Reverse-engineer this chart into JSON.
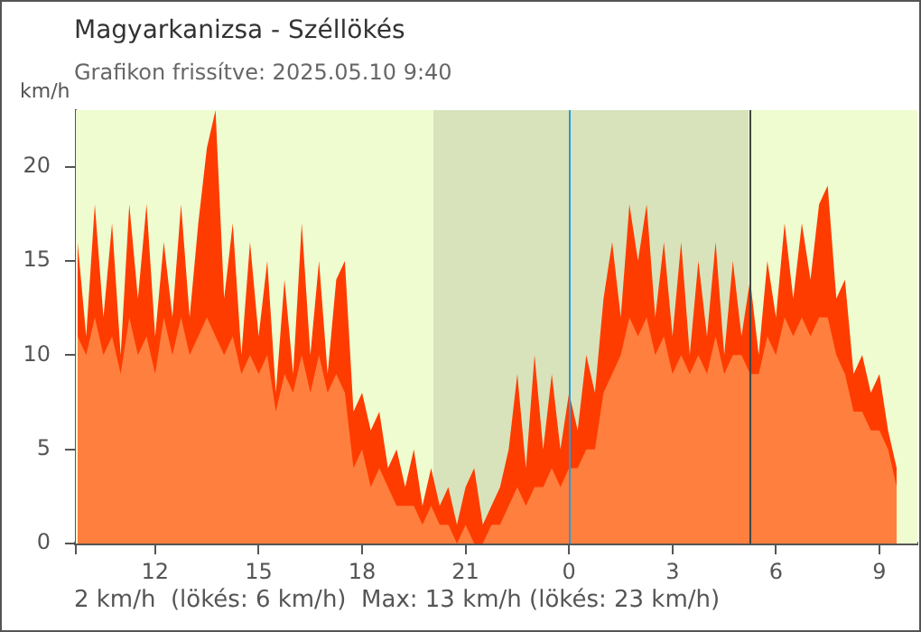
{
  "chart_data": {
    "type": "area",
    "title": "Magyarkanizsa - Széllökés",
    "subtitle": "Grafikon frissítve: 2025.05.10 9:40",
    "ylabel": "km/h",
    "annotations": [
      "2 km/h  (lökés: 6 km/h)  Max: 13 km/h (lökés: 23 km/h)"
    ],
    "x": [
      "2025-05-09T09:45",
      "2025-05-09T10:00",
      "2025-05-09T10:15",
      "2025-05-09T10:30",
      "2025-05-09T10:45",
      "2025-05-09T11:00",
      "2025-05-09T11:15",
      "2025-05-09T11:30",
      "2025-05-09T11:45",
      "2025-05-09T12:00",
      "2025-05-09T12:15",
      "2025-05-09T12:30",
      "2025-05-09T12:45",
      "2025-05-09T13:00",
      "2025-05-09T13:15",
      "2025-05-09T13:30",
      "2025-05-09T13:45",
      "2025-05-09T14:00",
      "2025-05-09T14:15",
      "2025-05-09T14:30",
      "2025-05-09T14:45",
      "2025-05-09T15:00",
      "2025-05-09T15:15",
      "2025-05-09T15:30",
      "2025-05-09T15:45",
      "2025-05-09T16:00",
      "2025-05-09T16:15",
      "2025-05-09T16:30",
      "2025-05-09T16:45",
      "2025-05-09T17:00",
      "2025-05-09T17:15",
      "2025-05-09T17:30",
      "2025-05-09T17:45",
      "2025-05-09T18:00",
      "2025-05-09T18:15",
      "2025-05-09T18:30",
      "2025-05-09T18:45",
      "2025-05-09T19:00",
      "2025-05-09T19:15",
      "2025-05-09T19:30",
      "2025-05-09T19:45",
      "2025-05-09T20:00",
      "2025-05-09T20:15",
      "2025-05-09T20:30",
      "2025-05-09T20:45",
      "2025-05-09T21:00",
      "2025-05-09T21:15",
      "2025-05-09T21:30",
      "2025-05-09T21:45",
      "2025-05-09T22:00",
      "2025-05-09T22:15",
      "2025-05-09T22:30",
      "2025-05-09T22:45",
      "2025-05-09T23:00",
      "2025-05-09T23:15",
      "2025-05-09T23:30",
      "2025-05-09T23:45",
      "2025-05-10T00:00",
      "2025-05-10T00:15",
      "2025-05-10T00:30",
      "2025-05-10T00:45",
      "2025-05-10T01:00",
      "2025-05-10T01:15",
      "2025-05-10T01:30",
      "2025-05-10T01:45",
      "2025-05-10T02:00",
      "2025-05-10T02:15",
      "2025-05-10T02:30",
      "2025-05-10T02:45",
      "2025-05-10T03:00",
      "2025-05-10T03:15",
      "2025-05-10T03:30",
      "2025-05-10T03:45",
      "2025-05-10T04:00",
      "2025-05-10T04:15",
      "2025-05-10T04:30",
      "2025-05-10T04:45",
      "2025-05-10T05:00",
      "2025-05-10T05:15",
      "2025-05-10T05:30",
      "2025-05-10T05:45",
      "2025-05-10T06:00",
      "2025-05-10T06:15",
      "2025-05-10T06:30",
      "2025-05-10T06:45",
      "2025-05-10T07:00",
      "2025-05-10T07:15",
      "2025-05-10T07:30",
      "2025-05-10T07:45",
      "2025-05-10T08:00",
      "2025-05-10T08:15",
      "2025-05-10T08:30",
      "2025-05-10T08:45",
      "2025-05-10T09:00",
      "2025-05-10T09:15",
      "2025-05-10T09:30"
    ],
    "series": [
      {
        "color": "#ff3c00",
        "values": [
          16,
          11,
          18,
          12,
          17,
          10,
          18,
          13,
          18,
          11,
          16,
          12,
          18,
          12,
          17,
          21,
          23,
          13,
          17,
          10,
          16,
          11,
          15,
          8,
          14,
          9,
          17,
          10,
          15,
          9,
          14,
          15,
          7,
          8,
          6,
          7,
          4,
          5,
          3,
          5,
          2,
          4,
          2,
          3,
          1,
          3,
          4,
          1,
          2,
          3,
          5,
          9,
          4,
          10,
          5,
          9,
          5,
          8,
          6,
          10,
          8,
          13,
          16,
          12,
          18,
          15,
          18,
          12,
          16,
          11,
          16,
          10,
          15,
          11,
          16,
          10,
          15,
          11,
          14,
          10,
          15,
          12,
          17,
          13,
          17,
          14,
          18,
          19,
          13,
          14,
          9,
          10,
          8,
          9,
          6,
          4
        ]
      },
      {
        "color": "#ff7f3f",
        "values": [
          11,
          10,
          12,
          10,
          11,
          9,
          12,
          10,
          11,
          9,
          12,
          10,
          12,
          10,
          11,
          12,
          11,
          10,
          11,
          9,
          10,
          9,
          10,
          7,
          9,
          8,
          10,
          8,
          10,
          8,
          9,
          8,
          4,
          5,
          3,
          4,
          3,
          2,
          2,
          2,
          1,
          2,
          1,
          1,
          0,
          1,
          0,
          0,
          1,
          1,
          2,
          3,
          2,
          3,
          3,
          4,
          3,
          4,
          4,
          5,
          5,
          8,
          9,
          10,
          12,
          11,
          12,
          10,
          11,
          9,
          10,
          9,
          10,
          9,
          11,
          9,
          10,
          10,
          9,
          9,
          11,
          10,
          12,
          11,
          12,
          11,
          12,
          12,
          10,
          9,
          7,
          7,
          6,
          6,
          5,
          3
        ]
      }
    ],
    "xlim": [
      "2025-05-09T09:42",
      "2025-05-10T10:06"
    ],
    "xticks": [
      {
        "value": "2025-05-09T09:42",
        "label": null
      },
      {
        "value": "2025-05-09T12:00",
        "label": "12"
      },
      {
        "value": "2025-05-09T15:00",
        "label": "15"
      },
      {
        "value": "2025-05-09T18:00",
        "label": "18"
      },
      {
        "value": "2025-05-09T21:00",
        "label": "21"
      },
      {
        "value": "2025-05-10T00:00",
        "label": "0"
      },
      {
        "value": "2025-05-10T03:00",
        "label": "3"
      },
      {
        "value": "2025-05-10T06:00",
        "label": "6"
      },
      {
        "value": "2025-05-10T09:00",
        "label": "9"
      }
    ],
    "ylim": [
      0,
      23
    ],
    "yticks": [
      0,
      5,
      10,
      15,
      20
    ],
    "bands": [
      {
        "axis": "x",
        "from": "2025-05-09T09:42",
        "to": "2025-05-09T20:04",
        "color": "#eefccf"
      },
      {
        "axis": "x",
        "from": "2025-05-09T20:04",
        "to": "2025-05-10T05:13",
        "color": "#d8e3bb"
      },
      {
        "axis": "x",
        "from": "2025-05-10T05:13",
        "to": "2025-05-10T10:06",
        "color": "#eefccf"
      }
    ],
    "ref_lines": [
      {
        "axis": "x",
        "value": "2025-05-10T00:00",
        "color": "#2a9ad8"
      },
      {
        "axis": "x",
        "value": "2025-05-10T05:13",
        "color": "#444444"
      }
    ],
    "marker": "none"
  }
}
